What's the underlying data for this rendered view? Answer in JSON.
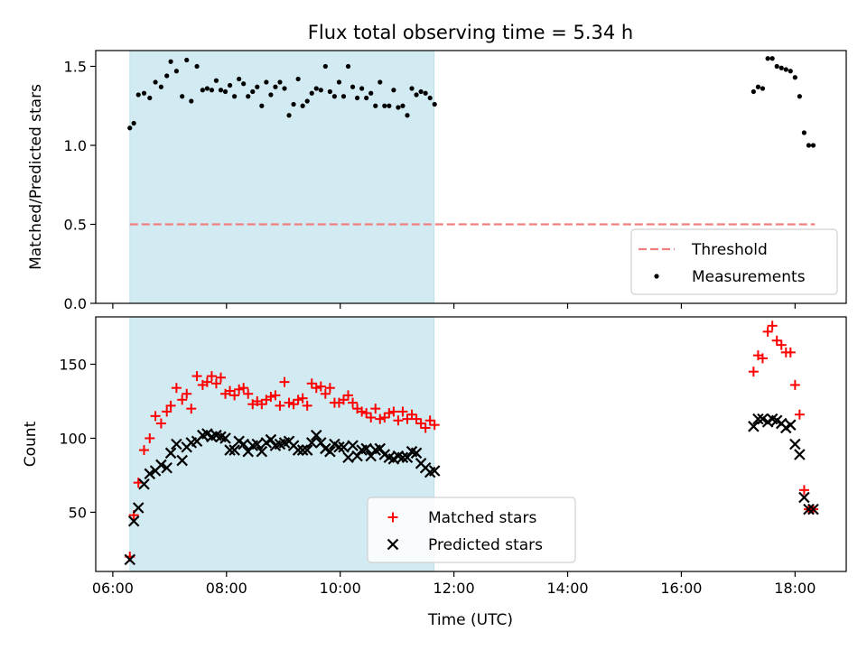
{
  "title": "Flux total observing time = 5.34 h",
  "x_axis": {
    "label": "Time (UTC)",
    "min_hours": 5.7,
    "max_hours": 18.9,
    "ticks": [
      {
        "v": 6,
        "label": "06:00"
      },
      {
        "v": 8,
        "label": "08:00"
      },
      {
        "v": 10,
        "label": "10:00"
      },
      {
        "v": 12,
        "label": "12:00"
      },
      {
        "v": 14,
        "label": "14:00"
      },
      {
        "v": 16,
        "label": "16:00"
      },
      {
        "v": 18,
        "label": "18:00"
      }
    ]
  },
  "chart_data": [
    {
      "type": "scatter",
      "ylabel": "Matched/Predicted stars",
      "ylim": [
        0,
        1.6
      ],
      "yticks": [
        {
          "v": 0,
          "label": "0.0"
        },
        {
          "v": 0.5,
          "label": "0.5"
        },
        {
          "v": 1.0,
          "label": "1.0"
        },
        {
          "v": 1.5,
          "label": "1.5"
        }
      ],
      "shaded_span": {
        "x0": 6.3,
        "x1": 11.65,
        "color": "#add8e6"
      },
      "threshold": {
        "name": "Threshold",
        "y": 0.5,
        "x0": 6.3,
        "x1": 18.35,
        "color": "#f08080"
      },
      "legend": {
        "position": "lower right",
        "entries": [
          "Threshold",
          "Measurements"
        ]
      },
      "series": [
        {
          "name": "Measurements",
          "marker": "dot",
          "color": "#000000",
          "x": [
            6.3,
            6.37,
            6.45,
            6.55,
            6.65,
            6.75,
            6.85,
            6.95,
            7.02,
            7.12,
            7.22,
            7.3,
            7.38,
            7.48,
            7.58,
            7.66,
            7.74,
            7.82,
            7.9,
            7.98,
            8.06,
            8.14,
            8.22,
            8.3,
            8.38,
            8.46,
            8.54,
            8.62,
            8.7,
            8.78,
            8.86,
            8.94,
            9.02,
            9.1,
            9.18,
            9.26,
            9.34,
            9.42,
            9.5,
            9.58,
            9.66,
            9.74,
            9.82,
            9.9,
            9.98,
            10.06,
            10.14,
            10.22,
            10.3,
            10.38,
            10.46,
            10.54,
            10.62,
            10.7,
            10.78,
            10.86,
            10.94,
            11.02,
            11.1,
            11.18,
            11.26,
            11.34,
            11.42,
            11.5,
            11.58,
            11.66,
            17.27,
            17.35,
            17.43,
            17.52,
            17.6,
            17.68,
            17.76,
            17.84,
            17.92,
            18.0,
            18.08,
            18.16,
            18.24,
            18.32
          ],
          "y": [
            1.11,
            1.14,
            1.32,
            1.33,
            1.3,
            1.4,
            1.37,
            1.44,
            1.53,
            1.47,
            1.31,
            1.54,
            1.28,
            1.5,
            1.35,
            1.36,
            1.35,
            1.41,
            1.35,
            1.34,
            1.38,
            1.31,
            1.42,
            1.39,
            1.31,
            1.34,
            1.37,
            1.25,
            1.4,
            1.32,
            1.37,
            1.4,
            1.36,
            1.19,
            1.26,
            1.42,
            1.25,
            1.28,
            1.33,
            1.36,
            1.35,
            1.5,
            1.34,
            1.31,
            1.4,
            1.31,
            1.5,
            1.37,
            1.3,
            1.36,
            1.3,
            1.33,
            1.25,
            1.4,
            1.25,
            1.25,
            1.35,
            1.24,
            1.25,
            1.19,
            1.36,
            1.32,
            1.34,
            1.33,
            1.3,
            1.26,
            1.34,
            1.37,
            1.36,
            1.55,
            1.55,
            1.5,
            1.49,
            1.48,
            1.47,
            1.43,
            1.31,
            1.08,
            1.0,
            1.0
          ]
        }
      ]
    },
    {
      "type": "scatter",
      "ylabel": "Count",
      "ylim": [
        10,
        182
      ],
      "yticks": [
        {
          "v": 50,
          "label": "50"
        },
        {
          "v": 100,
          "label": "100"
        },
        {
          "v": 150,
          "label": "150"
        }
      ],
      "shaded_span": {
        "x0": 6.3,
        "x1": 11.65,
        "color": "#add8e6"
      },
      "legend": {
        "position": "lower center",
        "entries": [
          "Matched stars",
          "Predicted stars"
        ]
      },
      "series": [
        {
          "name": "Matched stars",
          "marker": "plus",
          "color": "#ff0000",
          "x": [
            6.3,
            6.37,
            6.45,
            6.55,
            6.65,
            6.75,
            6.85,
            6.95,
            7.02,
            7.12,
            7.22,
            7.3,
            7.38,
            7.48,
            7.58,
            7.66,
            7.74,
            7.82,
            7.9,
            7.98,
            8.06,
            8.14,
            8.22,
            8.3,
            8.38,
            8.46,
            8.54,
            8.62,
            8.7,
            8.78,
            8.86,
            8.94,
            9.02,
            9.1,
            9.18,
            9.26,
            9.34,
            9.42,
            9.5,
            9.58,
            9.66,
            9.74,
            9.82,
            9.9,
            9.98,
            10.06,
            10.14,
            10.22,
            10.3,
            10.38,
            10.46,
            10.54,
            10.62,
            10.7,
            10.78,
            10.86,
            10.94,
            11.02,
            11.1,
            11.18,
            11.26,
            11.34,
            11.42,
            11.5,
            11.58,
            11.66,
            17.27,
            17.35,
            17.43,
            17.52,
            17.6,
            17.68,
            17.76,
            17.84,
            17.92,
            18.0,
            18.08,
            18.16,
            18.24,
            18.32
          ],
          "y": [
            20,
            48,
            70,
            92,
            100,
            115,
            110,
            118,
            122,
            134,
            126,
            130,
            120,
            142,
            136,
            138,
            142,
            137,
            141,
            130,
            132,
            129,
            133,
            134,
            130,
            123,
            125,
            123,
            126,
            128,
            129,
            122,
            138,
            124,
            123,
            126,
            127,
            122,
            137,
            134,
            135,
            130,
            134,
            124,
            124,
            126,
            129,
            124,
            120,
            118,
            117,
            114,
            120,
            113,
            114,
            117,
            118,
            112,
            118,
            113,
            116,
            113,
            110,
            107,
            112,
            109,
            145,
            156,
            154,
            172,
            176,
            166,
            163,
            158,
            158,
            136,
            116,
            65,
            52,
            52
          ]
        },
        {
          "name": "Predicted stars",
          "marker": "x",
          "color": "#000000",
          "x": [
            6.3,
            6.37,
            6.45,
            6.55,
            6.65,
            6.75,
            6.85,
            6.95,
            7.02,
            7.12,
            7.22,
            7.3,
            7.38,
            7.48,
            7.58,
            7.66,
            7.74,
            7.82,
            7.9,
            7.98,
            8.06,
            8.14,
            8.22,
            8.3,
            8.38,
            8.46,
            8.54,
            8.62,
            8.7,
            8.78,
            8.86,
            8.94,
            9.02,
            9.1,
            9.18,
            9.26,
            9.34,
            9.42,
            9.5,
            9.58,
            9.66,
            9.74,
            9.82,
            9.9,
            9.98,
            10.06,
            10.14,
            10.22,
            10.3,
            10.38,
            10.46,
            10.54,
            10.62,
            10.7,
            10.78,
            10.86,
            10.94,
            11.02,
            11.1,
            11.18,
            11.26,
            11.34,
            11.42,
            11.5,
            11.58,
            11.66,
            17.27,
            17.35,
            17.43,
            17.52,
            17.6,
            17.68,
            17.76,
            17.84,
            17.92,
            18.0,
            18.08,
            18.16,
            18.24,
            18.32
          ],
          "y": [
            18,
            44,
            53,
            69,
            76,
            78,
            82,
            80,
            90,
            96,
            85,
            94,
            97,
            98,
            102,
            103,
            101,
            102,
            101,
            100,
            92,
            92,
            98,
            96,
            91,
            95,
            96,
            91,
            97,
            99,
            95,
            96,
            97,
            98,
            95,
            92,
            92,
            92,
            97,
            102,
            97,
            93,
            91,
            96,
            94,
            94,
            87,
            95,
            88,
            92,
            93,
            88,
            92,
            93,
            89,
            87,
            86,
            88,
            87,
            87,
            91,
            90,
            83,
            80,
            77,
            78,
            108,
            113,
            113,
            111,
            113,
            112,
            110,
            107,
            109,
            96,
            89,
            60,
            52,
            52
          ]
        }
      ]
    }
  ]
}
